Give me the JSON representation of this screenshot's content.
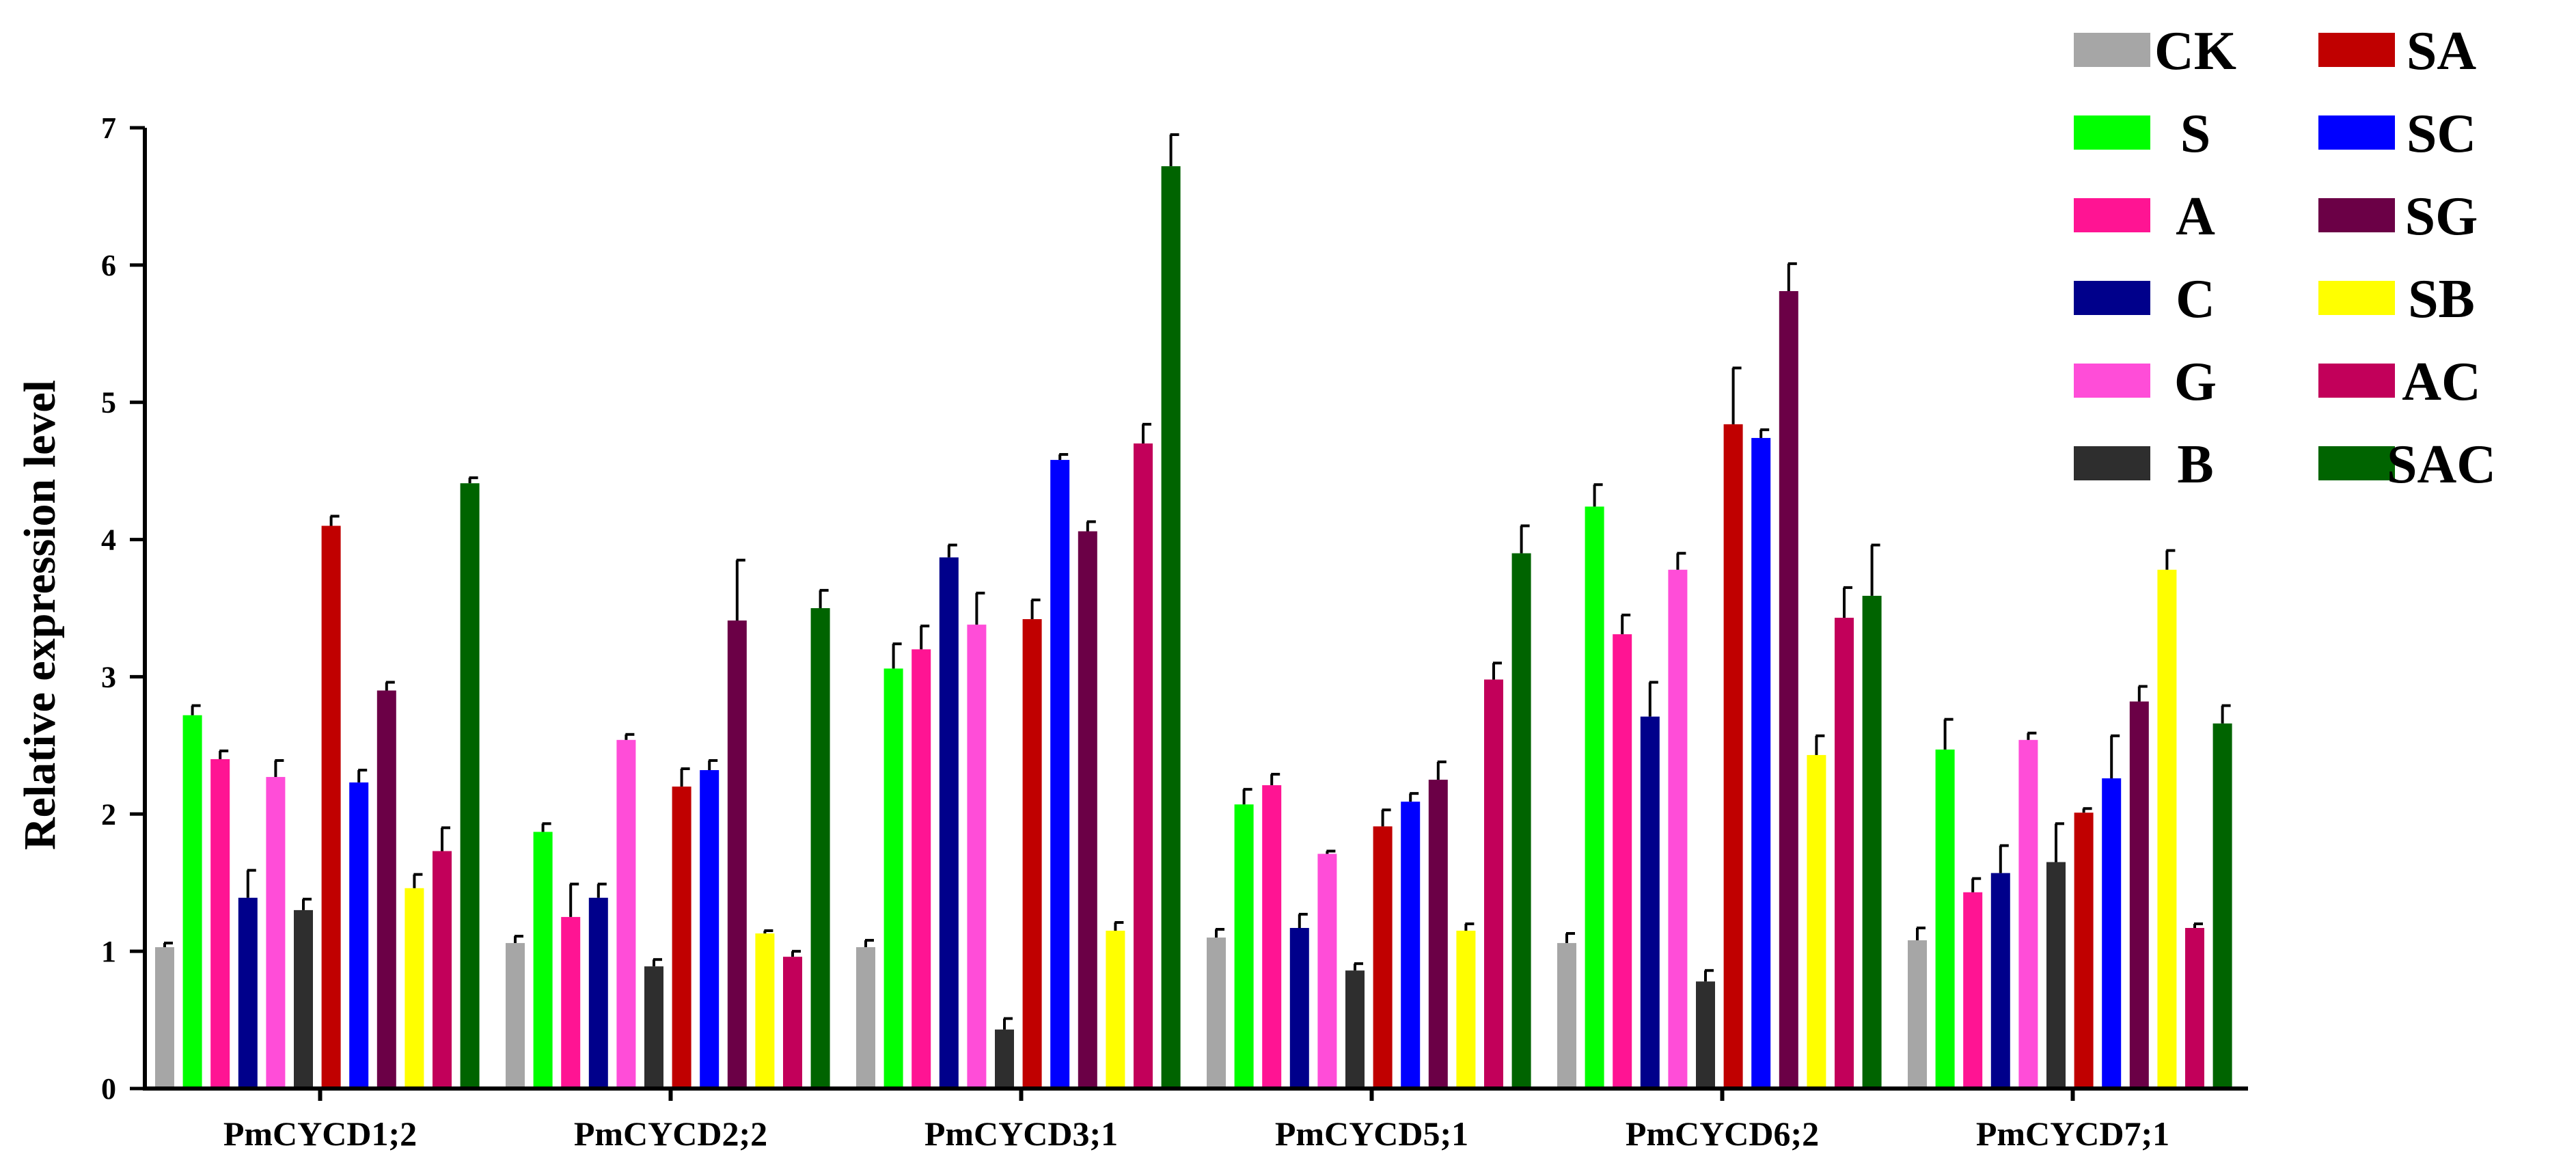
{
  "chart_data": {
    "type": "bar",
    "ylabel": "Relative expression level",
    "xlabel": "",
    "ylim": [
      0,
      7
    ],
    "yticks": [
      0,
      1,
      2,
      3,
      4,
      5,
      6,
      7
    ],
    "grid": false,
    "legend_position": "top-right",
    "categories": [
      "PmCYCD1;2",
      "PmCYCD2;2",
      "PmCYCD3;1",
      "PmCYCD5;1",
      "PmCYCD6;2",
      "PmCYCD7;1"
    ],
    "series": [
      {
        "name": "CK",
        "color": "#A6A6A6",
        "values": [
          1.03,
          1.06,
          1.03,
          1.1,
          1.06,
          1.08
        ],
        "errors": [
          0.03,
          0.05,
          0.05,
          0.06,
          0.07,
          0.09
        ]
      },
      {
        "name": "S",
        "color": "#00FF00",
        "values": [
          2.72,
          1.87,
          3.06,
          2.07,
          4.24,
          2.47
        ],
        "errors": [
          0.07,
          0.06,
          0.18,
          0.11,
          0.16,
          0.22
        ]
      },
      {
        "name": "A",
        "color": "#FF1493",
        "values": [
          2.4,
          1.25,
          3.2,
          2.21,
          3.31,
          1.43
        ],
        "errors": [
          0.06,
          0.24,
          0.17,
          0.08,
          0.14,
          0.1
        ]
      },
      {
        "name": "C",
        "color": "#00008B",
        "values": [
          1.39,
          1.39,
          3.87,
          1.17,
          2.71,
          1.57
        ],
        "errors": [
          0.2,
          0.1,
          0.09,
          0.1,
          0.25,
          0.2
        ]
      },
      {
        "name": "G",
        "color": "#FF4DD8",
        "values": [
          2.27,
          2.54,
          3.38,
          1.71,
          3.78,
          2.54
        ],
        "errors": [
          0.12,
          0.04,
          0.23,
          0.02,
          0.12,
          0.05
        ]
      },
      {
        "name": "B",
        "color": "#2E2E2E",
        "values": [
          1.3,
          0.89,
          0.43,
          0.86,
          0.78,
          1.65
        ],
        "errors": [
          0.08,
          0.05,
          0.08,
          0.05,
          0.08,
          0.28
        ]
      },
      {
        "name": "SA",
        "color": "#C00000",
        "values": [
          4.1,
          2.2,
          3.42,
          1.91,
          4.84,
          2.01
        ],
        "errors": [
          0.07,
          0.13,
          0.14,
          0.12,
          0.41,
          0.03
        ]
      },
      {
        "name": "SC",
        "color": "#0000FF",
        "values": [
          2.23,
          2.32,
          4.58,
          2.09,
          4.74,
          2.26
        ],
        "errors": [
          0.09,
          0.07,
          0.04,
          0.06,
          0.06,
          0.31
        ]
      },
      {
        "name": "SG",
        "color": "#6B0046",
        "values": [
          2.9,
          3.41,
          4.06,
          2.25,
          5.81,
          2.82
        ],
        "errors": [
          0.06,
          0.44,
          0.07,
          0.13,
          0.2,
          0.11
        ]
      },
      {
        "name": "SB",
        "color": "#FFFF00",
        "values": [
          1.46,
          1.13,
          1.15,
          1.15,
          2.43,
          3.78
        ],
        "errors": [
          0.1,
          0.02,
          0.06,
          0.05,
          0.14,
          0.14
        ]
      },
      {
        "name": "AC",
        "color": "#C2005A",
        "values": [
          1.73,
          0.96,
          4.7,
          2.98,
          3.43,
          1.17
        ],
        "errors": [
          0.17,
          0.04,
          0.14,
          0.12,
          0.22,
          0.03
        ]
      },
      {
        "name": "SAC",
        "color": "#006400",
        "values": [
          4.41,
          3.5,
          6.72,
          3.9,
          3.59,
          2.66
        ],
        "errors": [
          0.04,
          0.13,
          0.23,
          0.2,
          0.37,
          0.13
        ]
      }
    ]
  }
}
